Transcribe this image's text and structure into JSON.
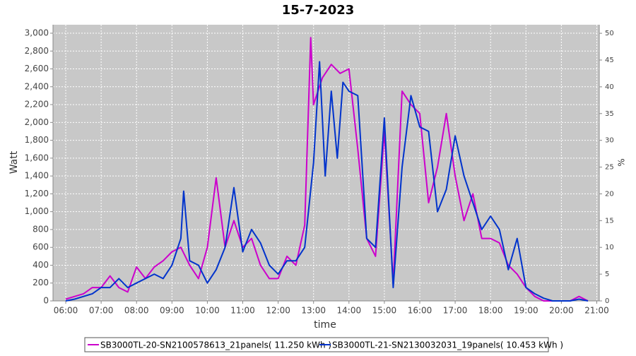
{
  "chart_data": {
    "type": "line",
    "title": "15-7-2023",
    "xlabel": "time",
    "ylabel": "Watt",
    "y2label": "%",
    "xlim": [
      5.64,
      21.07
    ],
    "xticks": [
      {
        "value": 6,
        "label": "06:00"
      },
      {
        "value": 7,
        "label": "07:00"
      },
      {
        "value": 8,
        "label": "08:00"
      },
      {
        "value": 9,
        "label": "09:00"
      },
      {
        "value": 10,
        "label": "10:00"
      },
      {
        "value": 11,
        "label": "11:00"
      },
      {
        "value": 12,
        "label": "12:00"
      },
      {
        "value": 13,
        "label": "13:00"
      },
      {
        "value": 14,
        "label": "14:00"
      },
      {
        "value": 15,
        "label": "15:00"
      },
      {
        "value": 16,
        "label": "16:00"
      },
      {
        "value": 17,
        "label": "17:00"
      },
      {
        "value": 18,
        "label": "18:00"
      },
      {
        "value": 19,
        "label": "19:00"
      },
      {
        "value": 20,
        "label": "20:00"
      },
      {
        "value": 21,
        "label": "21:00"
      }
    ],
    "ylim": [
      0,
      3095
    ],
    "yticks": [
      0,
      200,
      400,
      600,
      800,
      {
        "value": 1000,
        "label": "1,000"
      },
      {
        "value": 1200,
        "label": "1,200"
      },
      {
        "value": 1400,
        "label": "1,400"
      },
      {
        "value": 1600,
        "label": "1,600"
      },
      {
        "value": 1800,
        "label": "1,800"
      },
      {
        "value": 2000,
        "label": "2,000"
      },
      {
        "value": 2200,
        "label": "2,200"
      },
      {
        "value": 2400,
        "label": "2,400"
      },
      {
        "value": 2600,
        "label": "2,600"
      },
      {
        "value": 2800,
        "label": "2,800"
      },
      {
        "value": 3000,
        "label": "3,000"
      }
    ],
    "y2lim": [
      0,
      51.6
    ],
    "y2ticks": [
      0,
      5,
      10,
      15,
      20,
      25,
      30,
      35,
      40,
      45,
      50
    ],
    "grid": true,
    "legend": "bottom",
    "series": [
      {
        "name": "SB3000TL-20-SN2100578613_21panels( 11.250 kWh )",
        "color": "#cc00cc",
        "x": [
          6.0,
          6.25,
          6.5,
          6.75,
          7.0,
          7.25,
          7.5,
          7.75,
          8.0,
          8.25,
          8.5,
          8.75,
          9.0,
          9.25,
          9.5,
          9.75,
          10.0,
          10.25,
          10.5,
          10.75,
          11.0,
          11.25,
          11.5,
          11.75,
          12.0,
          12.25,
          12.5,
          12.75,
          12.92,
          13.0,
          13.25,
          13.5,
          13.75,
          14.0,
          14.25,
          14.5,
          14.75,
          15.0,
          15.25,
          15.5,
          15.75,
          16.0,
          16.25,
          16.5,
          16.75,
          17.0,
          17.25,
          17.5,
          17.75,
          18.0,
          18.25,
          18.5,
          18.75,
          19.0,
          19.25,
          19.5,
          19.75,
          20.0,
          20.25,
          20.5,
          20.75
        ],
        "values": [
          20,
          50,
          80,
          150,
          150,
          280,
          150,
          100,
          380,
          250,
          380,
          450,
          550,
          600,
          400,
          250,
          600,
          1380,
          600,
          900,
          600,
          700,
          400,
          250,
          250,
          500,
          400,
          850,
          2950,
          2200,
          2500,
          2650,
          2550,
          2600,
          1700,
          700,
          500,
          1900,
          200,
          2350,
          2200,
          2100,
          1100,
          1500,
          2100,
          1400,
          900,
          1200,
          700,
          700,
          650,
          400,
          300,
          150,
          50,
          0,
          0,
          0,
          0,
          50,
          0
        ]
      },
      {
        "name": "SB3000TL-21-SN2130032031_19panels( 10.453 kWh )",
        "color": "#0033cc",
        "x": [
          6.0,
          6.25,
          6.5,
          6.75,
          7.0,
          7.25,
          7.5,
          7.75,
          8.0,
          8.25,
          8.5,
          8.75,
          9.0,
          9.25,
          9.33,
          9.5,
          9.75,
          10.0,
          10.25,
          10.5,
          10.75,
          11.0,
          11.25,
          11.5,
          11.75,
          12.0,
          12.25,
          12.5,
          12.75,
          13.0,
          13.17,
          13.33,
          13.5,
          13.67,
          13.83,
          14.0,
          14.25,
          14.5,
          14.75,
          15.0,
          15.25,
          15.5,
          15.75,
          16.0,
          16.25,
          16.5,
          16.75,
          17.0,
          17.25,
          17.5,
          17.75,
          18.0,
          18.25,
          18.5,
          18.75,
          19.0,
          19.25,
          19.5,
          19.75,
          20.0,
          20.25,
          20.5,
          20.75
        ],
        "values": [
          0,
          20,
          50,
          80,
          150,
          150,
          250,
          150,
          200,
          250,
          300,
          250,
          400,
          700,
          1230,
          450,
          400,
          200,
          350,
          600,
          1270,
          550,
          800,
          650,
          400,
          300,
          450,
          450,
          600,
          1550,
          2680,
          1400,
          2350,
          1600,
          2450,
          2350,
          2300,
          700,
          600,
          2050,
          150,
          1500,
          2300,
          1950,
          1900,
          1000,
          1250,
          1850,
          1400,
          1100,
          800,
          950,
          800,
          350,
          700,
          150,
          80,
          30,
          0,
          0,
          0,
          20,
          0
        ]
      }
    ]
  }
}
